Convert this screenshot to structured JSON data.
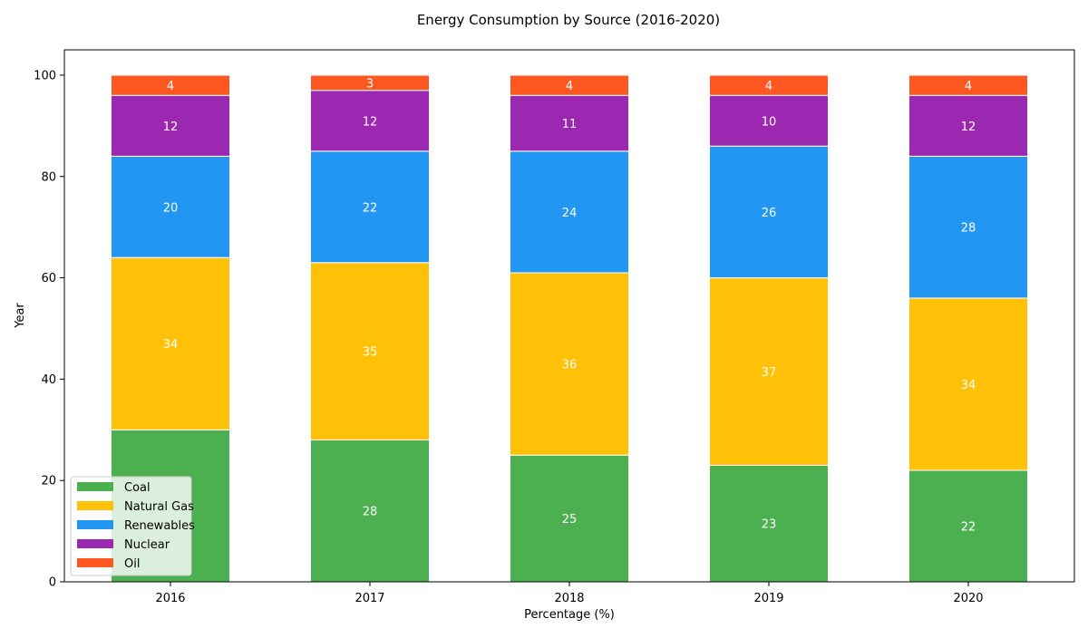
{
  "chart_data": {
    "type": "bar",
    "stacked": true,
    "title": "Energy Consumption by Source (2016-2020)",
    "xlabel": "Percentage (%)",
    "ylabel": "Year",
    "categories": [
      "2016",
      "2017",
      "2018",
      "2019",
      "2020"
    ],
    "ylim": [
      0,
      105
    ],
    "yticks": [
      0,
      20,
      40,
      60,
      80,
      100
    ],
    "grid": false,
    "legend_position": "lower-left",
    "series": [
      {
        "name": "Coal",
        "color": "#4caf50",
        "values": [
          30,
          28,
          25,
          23,
          22
        ],
        "labels": [
          "",
          "28",
          "25",
          "23",
          "22"
        ]
      },
      {
        "name": "Natural Gas",
        "color": "#ffc107",
        "values": [
          34,
          35,
          36,
          37,
          34
        ],
        "labels": [
          "34",
          "35",
          "36",
          "37",
          "34"
        ]
      },
      {
        "name": "Renewables",
        "color": "#2196f3",
        "values": [
          20,
          22,
          24,
          26,
          28
        ],
        "labels": [
          "20",
          "22",
          "24",
          "26",
          "28"
        ]
      },
      {
        "name": "Nuclear",
        "color": "#9c27b0",
        "values": [
          12,
          12,
          11,
          10,
          12
        ],
        "labels": [
          "12",
          "12",
          "11",
          "10",
          "12"
        ]
      },
      {
        "name": "Oil",
        "color": "#ff5722",
        "values": [
          4,
          3,
          4,
          4,
          4
        ],
        "labels": [
          "4",
          "3",
          "4",
          "4",
          "4"
        ]
      }
    ]
  }
}
